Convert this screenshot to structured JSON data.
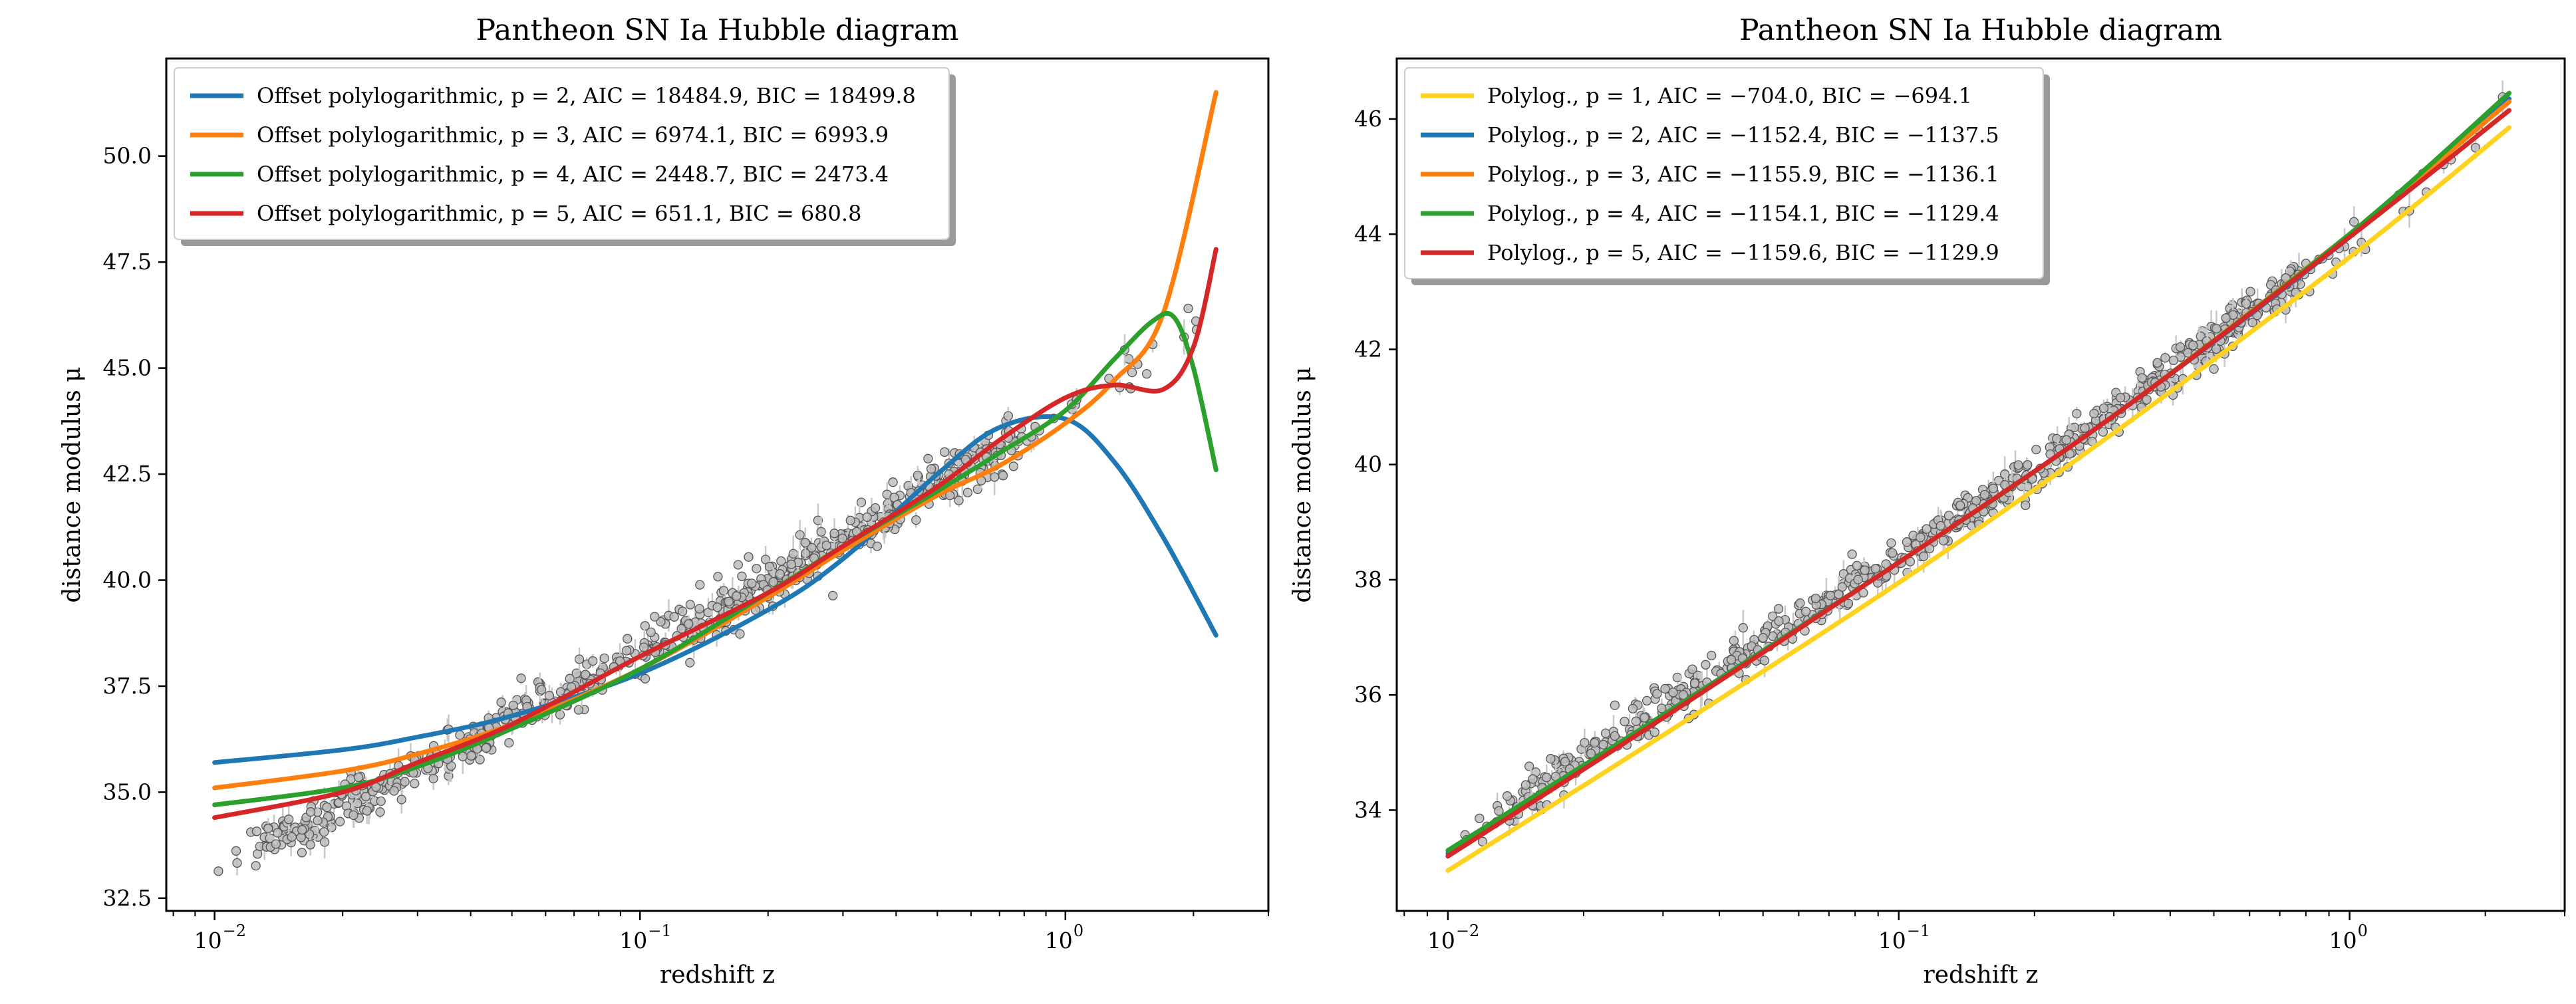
{
  "figure": {
    "colors": {
      "c1": "#1f77b4",
      "c2": "#ff7f0e",
      "c3": "#2ca02c",
      "c4": "#d62728",
      "c5": "#ffd21f",
      "points": "#bdbdbd"
    }
  },
  "chart_data": [
    {
      "type": "line",
      "title": "Pantheon SN Ia Hubble diagram",
      "xlabel": "redshift z",
      "ylabel": "distance modulus μ",
      "xscale": "log",
      "xlim": [
        0.0077,
        3.0
      ],
      "ylim": [
        32.2,
        52.3
      ],
      "yticks": [
        32.5,
        35.0,
        37.5,
        40.0,
        42.5,
        45.0,
        47.5,
        50.0
      ],
      "ytick_labels": [
        "32.5",
        "35.0",
        "37.5",
        "40.0",
        "42.5",
        "45.0",
        "47.5",
        "50.0"
      ],
      "xticks": [
        0.01,
        0.1,
        1.0
      ],
      "xtick_labels": [
        "10",
        "10",
        "10"
      ],
      "xtick_exponents": [
        "−2",
        "−1",
        "0"
      ],
      "grid": false,
      "legend_position": "upper-left",
      "scatter": {
        "name": "Pantheon SN Ia data",
        "z_range": [
          0.01,
          2.26
        ],
        "samples": [
          [
            0.01,
            33.3
          ],
          [
            0.015,
            34.1
          ],
          [
            0.02,
            34.7
          ],
          [
            0.03,
            35.5
          ],
          [
            0.05,
            36.7
          ],
          [
            0.1,
            38.3
          ],
          [
            0.2,
            39.9
          ],
          [
            0.3,
            40.9
          ],
          [
            0.5,
            42.3
          ],
          [
            0.7,
            43.0
          ],
          [
            1.0,
            44.0
          ],
          [
            1.3,
            44.7
          ],
          [
            1.7,
            45.4
          ],
          [
            2.26,
            46.2
          ]
        ]
      },
      "series": [
        {
          "name": "Offset polylogarithmic, p = 2, AIC = 18484.9, BIC = 18499.8",
          "color": "#1f77b4",
          "x": [
            0.01,
            0.02,
            0.03,
            0.05,
            0.1,
            0.2,
            0.3,
            0.5,
            0.7,
            1.0,
            1.3,
            1.7,
            2.26
          ],
          "y": [
            35.7,
            36.0,
            36.3,
            36.8,
            37.8,
            39.3,
            40.5,
            42.5,
            43.6,
            43.8,
            42.8,
            41.0,
            38.7
          ]
        },
        {
          "name": "Offset polylogarithmic, p = 3, AIC = 6974.1, BIC = 6993.9",
          "color": "#ff7f0e",
          "x": [
            0.01,
            0.02,
            0.03,
            0.05,
            0.1,
            0.2,
            0.3,
            0.5,
            0.7,
            1.0,
            1.3,
            1.7,
            2.26
          ],
          "y": [
            35.1,
            35.5,
            35.9,
            36.6,
            37.9,
            39.6,
            40.7,
            42.0,
            42.7,
            43.7,
            44.7,
            46.3,
            51.5
          ]
        },
        {
          "name": "Offset polylogarithmic, p = 4, AIC = 2448.7, BIC = 2473.4",
          "color": "#2ca02c",
          "x": [
            0.01,
            0.02,
            0.03,
            0.05,
            0.1,
            0.2,
            0.3,
            0.5,
            0.7,
            1.0,
            1.3,
            1.6,
            1.8,
            2.0,
            2.26
          ],
          "y": [
            34.7,
            35.1,
            35.6,
            36.5,
            37.9,
            39.7,
            40.8,
            42.1,
            43.0,
            44.0,
            45.2,
            46.1,
            46.2,
            45.0,
            42.6
          ]
        },
        {
          "name": "Offset polylogarithmic, p = 5, AIC = 651.1, BIC = 680.8",
          "color": "#d62728",
          "x": [
            0.01,
            0.02,
            0.03,
            0.05,
            0.1,
            0.2,
            0.3,
            0.5,
            0.7,
            1.0,
            1.3,
            1.7,
            2.0,
            2.26
          ],
          "y": [
            34.4,
            35.0,
            35.7,
            36.6,
            38.2,
            39.7,
            40.8,
            42.2,
            43.3,
            44.3,
            44.6,
            44.5,
            45.5,
            47.8
          ]
        }
      ]
    },
    {
      "type": "line",
      "title": "Pantheon SN Ia Hubble diagram",
      "xlabel": "redshift z",
      "ylabel": "distance modulus μ",
      "xscale": "log",
      "xlim": [
        0.0077,
        3.0
      ],
      "ylim": [
        32.25,
        47.05
      ],
      "yticks": [
        34,
        36,
        38,
        40,
        42,
        44,
        46
      ],
      "ytick_labels": [
        "34",
        "36",
        "38",
        "40",
        "42",
        "44",
        "46"
      ],
      "xticks": [
        0.01,
        0.1,
        1.0
      ],
      "xtick_labels": [
        "10",
        "10",
        "10"
      ],
      "xtick_exponents": [
        "−2",
        "−1",
        "0"
      ],
      "grid": false,
      "legend_position": "upper-left",
      "scatter": {
        "name": "Pantheon SN Ia data",
        "z_range": [
          0.01,
          2.26
        ],
        "samples": [
          [
            0.01,
            33.3
          ],
          [
            0.02,
            34.9
          ],
          [
            0.03,
            35.8
          ],
          [
            0.05,
            36.9
          ],
          [
            0.1,
            38.4
          ],
          [
            0.2,
            39.9
          ],
          [
            0.3,
            40.9
          ],
          [
            0.5,
            42.2
          ],
          [
            0.7,
            43.0
          ],
          [
            1.0,
            43.8
          ],
          [
            1.4,
            44.7
          ],
          [
            2.26,
            46.2
          ]
        ]
      },
      "series": [
        {
          "name": "Polylog., p = 1, AIC = −704.0, BIC = −694.1",
          "color": "#ffd21f",
          "x": [
            0.01,
            0.03,
            0.1,
            0.3,
            1.0,
            2.26
          ],
          "y": [
            32.95,
            35.3,
            37.95,
            40.55,
            43.6,
            45.85
          ]
        },
        {
          "name": "Polylog., p = 2, AIC = −1152.4, BIC = −1137.5",
          "color": "#1f77b4",
          "x": [
            0.01,
            0.03,
            0.1,
            0.3,
            1.0,
            2.26
          ],
          "y": [
            33.25,
            35.65,
            38.3,
            40.85,
            43.95,
            46.35
          ]
        },
        {
          "name": "Polylog., p = 3, AIC = −1155.9, BIC = −1136.1",
          "color": "#ff7f0e",
          "x": [
            0.01,
            0.03,
            0.1,
            0.3,
            1.0,
            2.26
          ],
          "y": [
            33.2,
            35.6,
            38.3,
            40.85,
            44.0,
            46.3
          ]
        },
        {
          "name": "Polylog., p = 4, AIC = −1154.1, BIC = −1129.4",
          "color": "#2ca02c",
          "x": [
            0.01,
            0.03,
            0.1,
            0.3,
            1.0,
            2.26
          ],
          "y": [
            33.3,
            35.65,
            38.3,
            40.85,
            44.0,
            46.45
          ]
        },
        {
          "name": "Polylog., p = 5, AIC = −1159.6, BIC = −1129.9",
          "color": "#d62728",
          "x": [
            0.01,
            0.03,
            0.1,
            0.3,
            1.0,
            2.26
          ],
          "y": [
            33.2,
            35.6,
            38.3,
            40.85,
            43.95,
            46.15
          ]
        }
      ]
    }
  ]
}
